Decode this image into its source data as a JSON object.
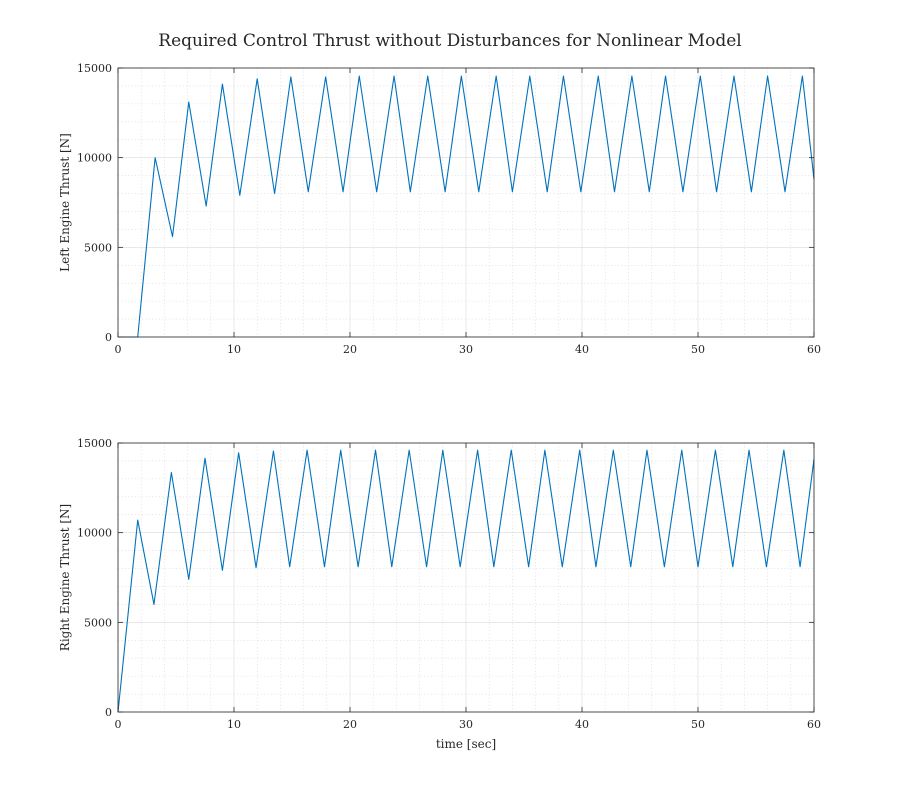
{
  "title": "Required Control Thrust without Disturbances for Nonlinear Model",
  "colors": {
    "line": "#0072BD",
    "axis": "#262626",
    "grid": "#d9d9d9"
  },
  "chart_data": [
    {
      "type": "line",
      "ylabel": "Left Engine Thrust [N]",
      "xlabel": "",
      "xlim": [
        0,
        60
      ],
      "ylim": [
        0,
        15000
      ],
      "xticks": [
        0,
        10,
        20,
        30,
        40,
        50,
        60
      ],
      "yticks": [
        0,
        5000,
        10000,
        15000
      ],
      "grid": "major and minor",
      "series": [
        {
          "x": [
            0,
            1.7,
            3.2,
            4.7,
            6.1,
            7.6,
            9.0,
            10.5,
            12.0,
            13.5,
            14.9,
            16.4,
            17.9,
            19.4,
            20.8,
            22.3,
            23.8,
            25.2,
            26.7,
            28.2,
            29.6,
            31.1,
            32.6,
            34.0,
            35.5,
            37.0,
            38.4,
            39.9,
            41.4,
            42.8,
            44.3,
            45.8,
            47.2,
            48.7,
            50.2,
            51.6,
            53.1,
            54.6,
            56.0,
            57.5,
            59.0,
            60.0
          ],
          "y": [
            0,
            0,
            10000,
            5600,
            13100,
            7300,
            14100,
            7900,
            14400,
            8000,
            14500,
            8100,
            14500,
            8100,
            14550,
            8100,
            14550,
            8100,
            14550,
            8100,
            14550,
            8100,
            14550,
            8100,
            14550,
            8100,
            14550,
            8100,
            14550,
            8100,
            14550,
            8100,
            14550,
            8100,
            14550,
            8100,
            14550,
            8100,
            14550,
            8100,
            14550,
            8800
          ]
        }
      ]
    },
    {
      "type": "line",
      "ylabel": "Right Engine Thrust [N]",
      "xlabel": "time [sec]",
      "xlim": [
        0,
        60
      ],
      "ylim": [
        0,
        15000
      ],
      "xticks": [
        0,
        10,
        20,
        30,
        40,
        50,
        60
      ],
      "yticks": [
        0,
        5000,
        10000,
        15000
      ],
      "grid": "major and minor",
      "series": [
        {
          "x": [
            0,
            1.7,
            3.1,
            4.6,
            6.1,
            7.5,
            9.0,
            10.4,
            11.9,
            13.4,
            14.8,
            16.3,
            17.8,
            19.2,
            20.7,
            22.2,
            23.6,
            25.1,
            26.6,
            28.0,
            29.5,
            31.0,
            32.4,
            33.9,
            35.4,
            36.8,
            38.3,
            39.8,
            41.2,
            42.7,
            44.2,
            45.6,
            47.1,
            48.6,
            50.0,
            51.5,
            53.0,
            54.4,
            55.9,
            57.4,
            58.8,
            60.0
          ],
          "y": [
            0,
            10700,
            6000,
            13350,
            7400,
            14150,
            7900,
            14450,
            8050,
            14550,
            8100,
            14600,
            8100,
            14600,
            8100,
            14600,
            8100,
            14600,
            8100,
            14600,
            8100,
            14600,
            8100,
            14600,
            8100,
            14600,
            8100,
            14600,
            8100,
            14600,
            8100,
            14600,
            8100,
            14600,
            8100,
            14600,
            8100,
            14600,
            8100,
            14600,
            8100,
            14100
          ]
        }
      ]
    }
  ]
}
